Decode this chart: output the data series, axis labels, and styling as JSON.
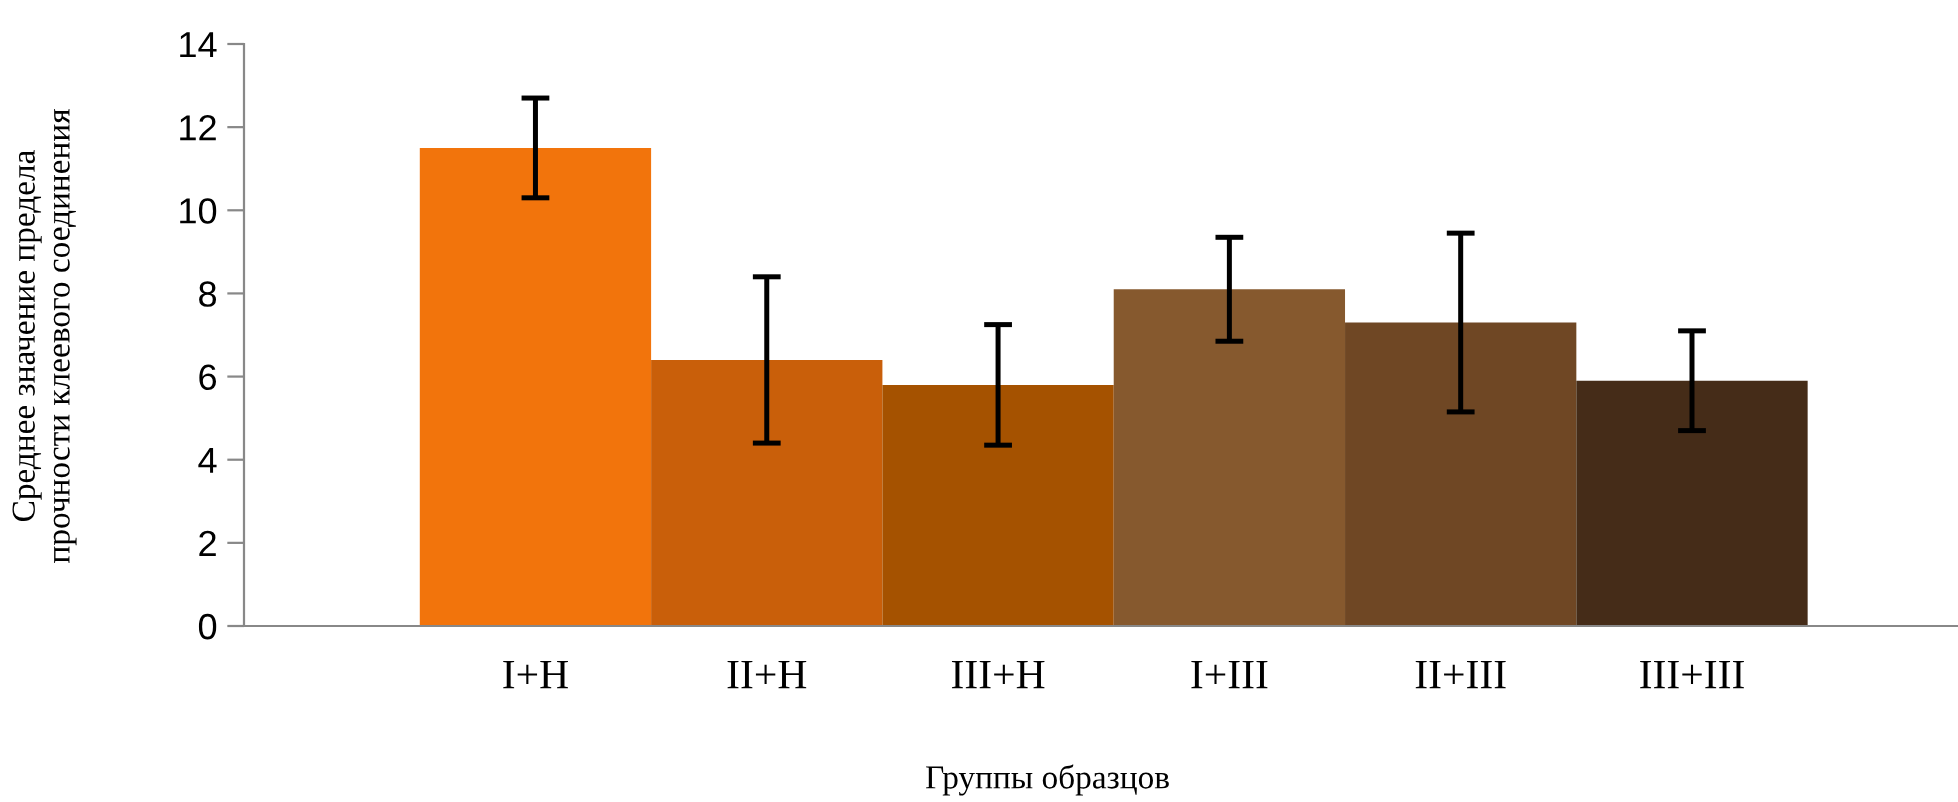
{
  "chart_data": {
    "type": "bar",
    "xlabel": "Группы образцов",
    "ylabel": "Среднее значение предела\nпрочности клеевого соединения",
    "categories": [
      "I+H",
      "II+H",
      "III+H",
      "I+III",
      "II+III",
      "III+III"
    ],
    "values": [
      11.5,
      6.4,
      5.8,
      8.1,
      7.3,
      5.9
    ],
    "errors": [
      1.2,
      2.0,
      1.45,
      1.25,
      2.15,
      1.2
    ],
    "colors": [
      "#f2740c",
      "#c95f0a",
      "#a55200",
      "#86592e",
      "#6f4724",
      "#452c18"
    ],
    "ylim": [
      0,
      14
    ],
    "yticks": [
      0,
      2,
      4,
      6,
      8,
      10,
      12,
      14
    ],
    "grid": false,
    "legend": false
  }
}
